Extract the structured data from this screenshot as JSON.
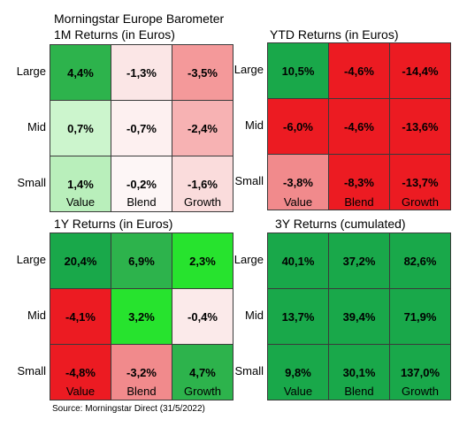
{
  "header": {
    "title": "Morningstar Europe Barometer"
  },
  "row_labels": [
    "Large",
    "Mid",
    "Small"
  ],
  "col_labels": [
    "Value",
    "Blend",
    "Growth"
  ],
  "panels": {
    "m1": {
      "title": "1M Returns (in Euros)",
      "cells": [
        [
          {
            "v": "4,4%",
            "c": "#2db34c"
          },
          {
            "v": "-1,3%",
            "c": "#fbe6e6"
          },
          {
            "v": "-3,5%",
            "c": "#f4999a"
          }
        ],
        [
          {
            "v": "0,7%",
            "c": "#ccf5cd"
          },
          {
            "v": "-0,7%",
            "c": "#fdf0f0"
          },
          {
            "v": "-2,4%",
            "c": "#f7b2b3"
          }
        ],
        [
          {
            "v": "1,4%",
            "c": "#b9efbb"
          },
          {
            "v": "-0,2%",
            "c": "#fdf6f6"
          },
          {
            "v": "-1,6%",
            "c": "#fadcdc"
          }
        ]
      ]
    },
    "ytd": {
      "title": "YTD Returns (in Euros)",
      "cells": [
        [
          {
            "v": "10,5%",
            "c": "#19a84a"
          },
          {
            "v": "-4,6%",
            "c": "#ec1b22"
          },
          {
            "v": "-14,4%",
            "c": "#ec1b22"
          }
        ],
        [
          {
            "v": "-6,0%",
            "c": "#ec1b22"
          },
          {
            "v": "-4,6%",
            "c": "#ec1b22"
          },
          {
            "v": "-13,6%",
            "c": "#ec1b22"
          }
        ],
        [
          {
            "v": "-3,8%",
            "c": "#f18a8c"
          },
          {
            "v": "-8,3%",
            "c": "#ec1b22"
          },
          {
            "v": "-13,7%",
            "c": "#ec1b22"
          }
        ]
      ]
    },
    "y1": {
      "title": "1Y Returns (in Euros)",
      "cells": [
        [
          {
            "v": "20,4%",
            "c": "#19a84a"
          },
          {
            "v": "6,9%",
            "c": "#2db34c"
          },
          {
            "v": "2,3%",
            "c": "#27e32e"
          }
        ],
        [
          {
            "v": "-4,1%",
            "c": "#ec1b22"
          },
          {
            "v": "3,2%",
            "c": "#27e32e"
          },
          {
            "v": "-0,4%",
            "c": "#fbeaea"
          }
        ],
        [
          {
            "v": "-4,8%",
            "c": "#ec1b22"
          },
          {
            "v": "-3,2%",
            "c": "#f18a8c"
          },
          {
            "v": "4,7%",
            "c": "#2db34c"
          }
        ]
      ]
    },
    "y3": {
      "title": "3Y Returns (cumulated)",
      "cells": [
        [
          {
            "v": "40,1%",
            "c": "#19a84a"
          },
          {
            "v": "37,2%",
            "c": "#19a84a"
          },
          {
            "v": "82,6%",
            "c": "#19a84a"
          }
        ],
        [
          {
            "v": "13,7%",
            "c": "#19a84a"
          },
          {
            "v": "39,4%",
            "c": "#19a84a"
          },
          {
            "v": "71,9%",
            "c": "#19a84a"
          }
        ],
        [
          {
            "v": "9,8%",
            "c": "#19a84a"
          },
          {
            "v": "30,1%",
            "c": "#19a84a"
          },
          {
            "v": "137,0%",
            "c": "#19a84a"
          }
        ]
      ]
    }
  },
  "footer": {
    "source": "Source: Morningstar Direct (31/5/2022)"
  }
}
